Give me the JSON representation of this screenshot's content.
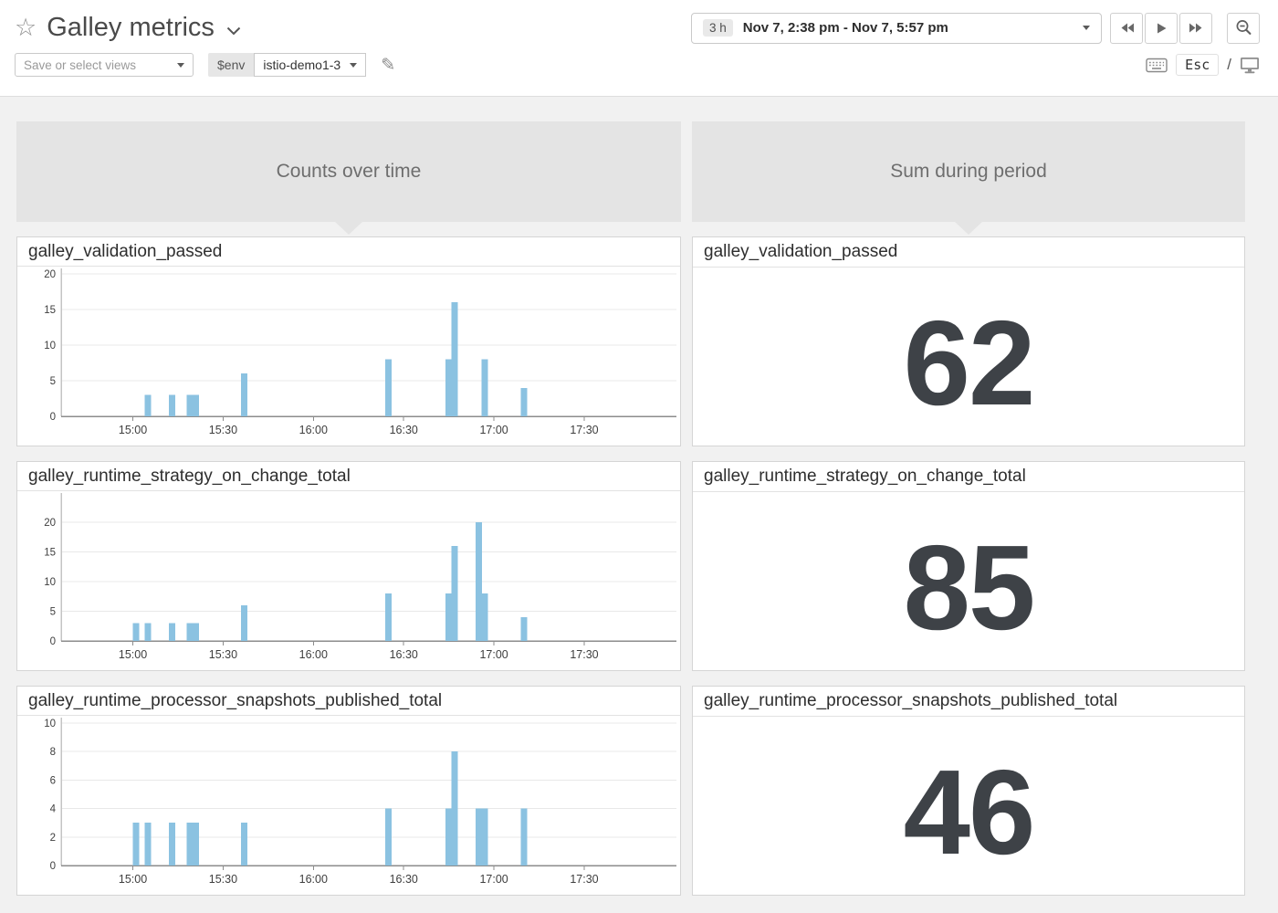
{
  "header": {
    "title": "Galley metrics",
    "favorite_icon": "☆",
    "edit_icon": "✎",
    "time_range": {
      "duration": "3 h",
      "label": "Nov 7, 2:38 pm - Nov 7, 5:57 pm"
    },
    "views_placeholder": "Save or select views",
    "env": {
      "name": "$env",
      "value": "istio-demo1-3"
    },
    "shortcuts": {
      "esc": "Esc",
      "slash": "/"
    }
  },
  "columns": [
    {
      "label": "Counts over time"
    },
    {
      "label": "Sum during period"
    }
  ],
  "rows": [
    {
      "metric": "galley_validation_passed",
      "sum": "62"
    },
    {
      "metric": "galley_runtime_strategy_on_change_total",
      "sum": "85"
    },
    {
      "metric": "galley_runtime_processor_snapshots_published_total",
      "sum": "46"
    }
  ],
  "colors": {
    "bar": "#8bc2e1",
    "grid_line": "#e8e8e8",
    "axis_line": "#8c8c8c",
    "spine_line": "#c4c4c4",
    "tick_text": "#3e3e3e",
    "sum_number": "#3e4247",
    "header_bg": "#e4e4e4"
  },
  "chart_data": [
    {
      "type": "bar",
      "title": "galley_validation_passed",
      "x_range": [
        "14:38",
        "17:57"
      ],
      "x_ticks": [
        "15:00",
        "15:30",
        "16:00",
        "16:30",
        "17:00",
        "17:30"
      ],
      "y_ticks": [
        0,
        5,
        10,
        15,
        20
      ],
      "ylim": [
        0,
        20
      ],
      "points": [
        {
          "x": "15:05",
          "y": 3
        },
        {
          "x": "15:13",
          "y": 3
        },
        {
          "x": "15:19",
          "y": 3
        },
        {
          "x": "15:21",
          "y": 3
        },
        {
          "x": "15:37",
          "y": 6
        },
        {
          "x": "16:25",
          "y": 8
        },
        {
          "x": "16:45",
          "y": 8
        },
        {
          "x": "16:47",
          "y": 16
        },
        {
          "x": "16:57",
          "y": 8
        },
        {
          "x": "17:10",
          "y": 4
        }
      ],
      "sum": 62
    },
    {
      "type": "bar",
      "title": "galley_runtime_strategy_on_change_total",
      "x_range": [
        "14:38",
        "17:57"
      ],
      "x_ticks": [
        "15:00",
        "15:30",
        "16:00",
        "16:30",
        "17:00",
        "17:30"
      ],
      "y_ticks": [
        0,
        5,
        10,
        15,
        20
      ],
      "ylim": [
        0,
        24
      ],
      "points": [
        {
          "x": "15:01",
          "y": 3
        },
        {
          "x": "15:05",
          "y": 3
        },
        {
          "x": "15:13",
          "y": 3
        },
        {
          "x": "15:19",
          "y": 3
        },
        {
          "x": "15:21",
          "y": 3
        },
        {
          "x": "15:37",
          "y": 6
        },
        {
          "x": "16:25",
          "y": 8
        },
        {
          "x": "16:45",
          "y": 8
        },
        {
          "x": "16:47",
          "y": 16
        },
        {
          "x": "16:55",
          "y": 20
        },
        {
          "x": "16:57",
          "y": 8
        },
        {
          "x": "17:10",
          "y": 4
        }
      ],
      "sum": 85
    },
    {
      "type": "bar",
      "title": "galley_runtime_processor_snapshots_published_total",
      "x_range": [
        "14:38",
        "17:57"
      ],
      "x_ticks": [
        "15:00",
        "15:30",
        "16:00",
        "16:30",
        "17:00",
        "17:30"
      ],
      "y_ticks": [
        0,
        2,
        4,
        6,
        8,
        10
      ],
      "ylim": [
        0,
        10
      ],
      "points": [
        {
          "x": "15:01",
          "y": 3
        },
        {
          "x": "15:05",
          "y": 3
        },
        {
          "x": "15:13",
          "y": 3
        },
        {
          "x": "15:19",
          "y": 3
        },
        {
          "x": "15:21",
          "y": 3
        },
        {
          "x": "15:37",
          "y": 3
        },
        {
          "x": "16:25",
          "y": 4
        },
        {
          "x": "16:45",
          "y": 4
        },
        {
          "x": "16:47",
          "y": 8
        },
        {
          "x": "16:55",
          "y": 4
        },
        {
          "x": "16:57",
          "y": 4
        },
        {
          "x": "17:10",
          "y": 4
        }
      ],
      "sum": 46
    }
  ]
}
